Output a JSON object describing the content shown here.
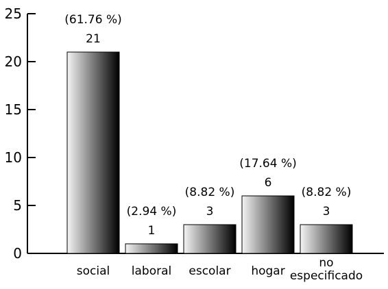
{
  "chart_data": {
    "type": "bar",
    "title": "",
    "xlabel": "",
    "ylabel": "",
    "ylim": [
      0,
      25
    ],
    "yticks": [
      "0",
      "5",
      "10",
      "15",
      "20",
      "25"
    ],
    "categories": [
      [
        "social"
      ],
      [
        "laboral"
      ],
      [
        "escolar"
      ],
      [
        "hogar"
      ],
      [
        "no",
        "especificado"
      ]
    ],
    "values": [
      21,
      1,
      3,
      6,
      3
    ],
    "value_labels": [
      "21",
      "1",
      "3",
      "6",
      "3"
    ],
    "percent_labels": [
      "(61.76 %)",
      "(2.94 %)",
      "(8.82 %)",
      "(17.64 %)",
      "(8.82 %)"
    ],
    "bar_gradient": [
      "#f4f4f4",
      "#000000"
    ],
    "grid": false,
    "legend": "none"
  }
}
